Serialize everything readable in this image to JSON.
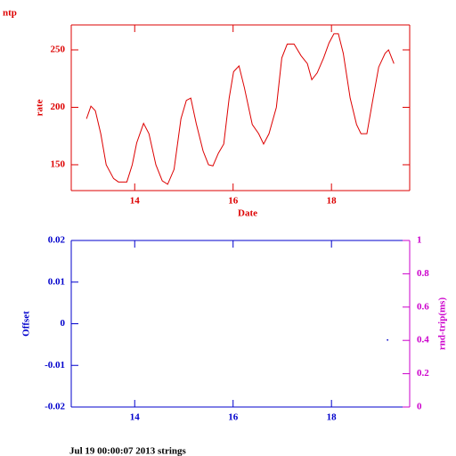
{
  "chart_data": [
    {
      "type": "line",
      "title": "ntp",
      "ylabel": "rate",
      "xlabel": "Date",
      "color": "#dd0000",
      "x": [
        13.02,
        13.11,
        13.2,
        13.31,
        13.42,
        13.57,
        13.67,
        13.84,
        13.95,
        14.04,
        14.18,
        14.29,
        14.43,
        14.56,
        14.67,
        14.8,
        14.94,
        15.05,
        15.14,
        15.25,
        15.39,
        15.5,
        15.59,
        15.7,
        15.81,
        15.92,
        16.01,
        16.12,
        16.23,
        16.39,
        16.52,
        16.62,
        16.73,
        16.88,
        16.99,
        17.1,
        17.24,
        17.38,
        17.51,
        17.6,
        17.71,
        17.84,
        17.95,
        18.05,
        18.14,
        18.24,
        18.38,
        18.51,
        18.6,
        18.72,
        18.83,
        18.96,
        19.09,
        19.16,
        19.27
      ],
      "values": [
        190,
        201,
        197,
        177,
        150,
        138,
        135,
        135,
        150,
        169,
        186,
        177,
        150,
        136,
        133,
        146,
        190,
        206,
        208,
        186,
        162,
        150,
        149,
        160,
        168,
        208,
        231,
        236,
        217,
        185,
        177,
        168,
        177,
        200,
        243,
        255,
        255,
        245,
        238,
        224,
        230,
        243,
        256,
        264,
        264,
        247,
        208,
        185,
        177,
        177,
        204,
        235,
        247,
        250,
        238
      ],
      "xlim": [
        12.71,
        19.59
      ],
      "xticks": [
        14,
        16,
        18
      ],
      "ylim": [
        127.5,
        271.7
      ],
      "yticks": [
        150,
        200,
        250
      ]
    },
    {
      "type": "scatter",
      "ylabel": "Offset",
      "y2label": "rnd-trip(ms)",
      "color": "#0000cc",
      "color2": "#cc00cc",
      "x": [
        19.14
      ],
      "values": [
        -0.0039
      ],
      "xlim": [
        12.71,
        19.59
      ],
      "xticks": [
        14,
        16,
        18
      ],
      "ylim": [
        -0.02,
        0.02
      ],
      "yticks": [
        -0.02,
        -0.01,
        0,
        0.01,
        0.02
      ],
      "y2lim": [
        0,
        1
      ],
      "y2ticks": [
        0,
        0.2,
        0.4,
        0.6,
        0.8,
        1
      ]
    }
  ],
  "footer": "Jul 19 00:00:07 2013 strings"
}
